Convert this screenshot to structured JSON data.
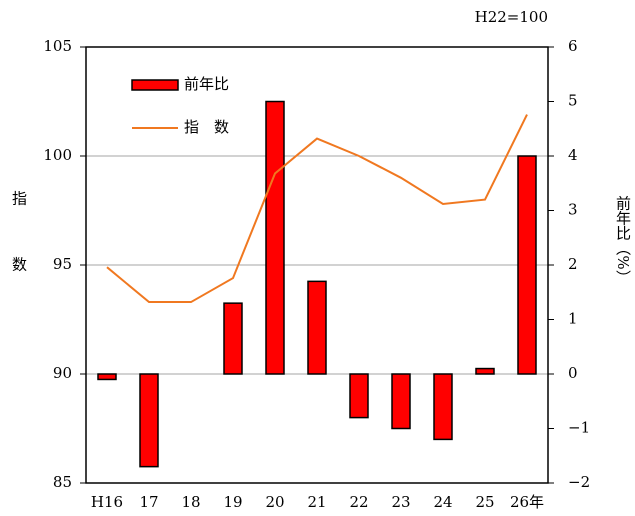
{
  "chart_data": {
    "type": "bar-line",
    "note": "H22=100",
    "ylabel": "指　数",
    "y2label": "前年比（%）",
    "categories": [
      "H16",
      "17",
      "18",
      "19",
      "20",
      "21",
      "22",
      "23",
      "24",
      "25",
      "26年"
    ],
    "series": [
      {
        "name": "前年比",
        "type": "bar",
        "axis": "y2",
        "color": "#ff0000",
        "values": [
          -0.1,
          -1.7,
          0,
          1.3,
          5.0,
          1.7,
          -0.8,
          -1.0,
          -1.2,
          0.1,
          4.0
        ]
      },
      {
        "name": "指　数",
        "type": "line",
        "color": "#f07820",
        "values": [
          94.9,
          93.3,
          93.3,
          94.4,
          99.2,
          100.8,
          100.0,
          99.0,
          97.8,
          98.0,
          101.9
        ]
      }
    ],
    "ylim": [
      85,
      105
    ],
    "yticks": [
      85,
      90,
      95,
      100,
      105
    ],
    "y2lim": [
      -2,
      6
    ],
    "y2ticks": [
      {
        "value": -2,
        "label": "−2"
      },
      {
        "value": -1,
        "label": "−1"
      },
      0,
      1,
      2,
      3,
      4,
      5,
      6
    ],
    "grid": true,
    "legend": "upper-left"
  }
}
